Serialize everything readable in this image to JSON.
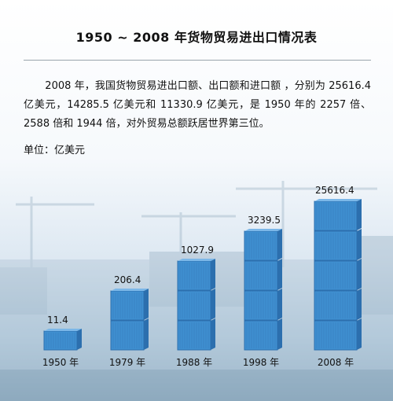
{
  "title": "1950 ~ 2008 年货物贸易进出口情况表",
  "paragraph": "2008 年，我国货物贸易进出口额、出口额和进口额 ，分别为 25616.4 亿美元，14285.5 亿美元和 11330.9 亿美元，是 1950 年的 2257 倍、2588 倍和 1944 倍，对外贸易总额跃居世界第三位。",
  "unit_label": "单位：亿美元",
  "chart_data": {
    "type": "bar",
    "title": "1950 ~ 2008 年货物贸易进出口情况表",
    "ylabel": "单位：亿美元",
    "categories": [
      "1950 年",
      "1979 年",
      "1988 年",
      "1998 年",
      "2008 年"
    ],
    "values": [
      11.4,
      206.4,
      1027.9,
      3239.5,
      25616.4
    ],
    "value_labels": [
      "11.4",
      "206.4",
      "1027.9",
      "3239.5",
      "25616.4"
    ],
    "stack_counts": [
      1,
      2,
      3,
      4,
      5
    ],
    "grid": false,
    "legend": "none",
    "colors": {
      "container": "#3f8fd0",
      "container_top": "#7bb7e8",
      "container_dark": "#2c6fae"
    }
  }
}
